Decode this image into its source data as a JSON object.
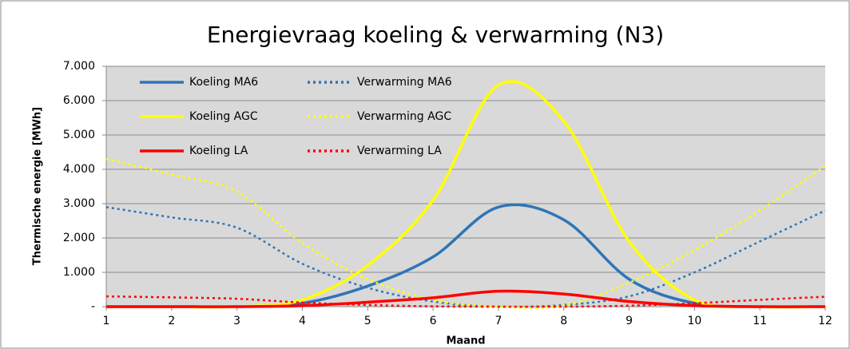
{
  "chart_data": {
    "type": "line",
    "title": "Energievraag koeling & verwarming (N3)",
    "xlabel": "Maand",
    "ylabel": "Thermische energie [MWh]",
    "x": [
      1,
      2,
      3,
      4,
      5,
      6,
      7,
      8,
      9,
      10,
      11,
      12
    ],
    "xlim": [
      1,
      12
    ],
    "xticks": [
      1,
      2,
      3,
      4,
      5,
      6,
      7,
      8,
      9,
      10,
      11,
      12
    ],
    "ylim": [
      0,
      7000
    ],
    "yticks": [
      {
        "value": 0,
        "label": "-"
      },
      {
        "value": 1000,
        "label": "1.000"
      },
      {
        "value": 2000,
        "label": "2.000"
      },
      {
        "value": 3000,
        "label": "3.000"
      },
      {
        "value": 4000,
        "label": "4.000"
      },
      {
        "value": 5000,
        "label": "5.000"
      },
      {
        "value": 6000,
        "label": "6.000"
      },
      {
        "value": 7000,
        "label": "7.000"
      }
    ],
    "grid": true,
    "smooth": true,
    "legend": "upper left",
    "series": [
      {
        "name": "Koeling MA6",
        "color": "#2e75b6",
        "linestyle": "solid",
        "values": [
          0,
          0,
          0,
          100,
          600,
          1450,
          2900,
          2530,
          800,
          100,
          0,
          0
        ]
      },
      {
        "name": "Verwarming MA6",
        "color": "#2e75b6",
        "linestyle": "dotted",
        "values": [
          2900,
          2600,
          2300,
          1250,
          550,
          150,
          0,
          50,
          300,
          1000,
          1900,
          2800
        ]
      },
      {
        "name": "Koeling AGC",
        "color": "#ffff00",
        "linestyle": "solid",
        "values": [
          0,
          0,
          0,
          200,
          1200,
          3100,
          6450,
          5400,
          1900,
          200,
          0,
          0
        ]
      },
      {
        "name": "Verwarming AGC",
        "color": "#ffff00",
        "linestyle": "dotted",
        "values": [
          4300,
          3850,
          3350,
          1850,
          800,
          200,
          0,
          30,
          700,
          1650,
          2800,
          4100
        ]
      },
      {
        "name": "Koeling LA",
        "color": "#ff0000",
        "linestyle": "solid",
        "values": [
          0,
          0,
          0,
          30,
          130,
          260,
          450,
          370,
          150,
          30,
          0,
          0
        ]
      },
      {
        "name": "Verwarming LA",
        "color": "#ff0000",
        "linestyle": "dotted",
        "values": [
          300,
          270,
          230,
          120,
          50,
          10,
          0,
          0,
          30,
          100,
          200,
          290
        ]
      }
    ]
  }
}
